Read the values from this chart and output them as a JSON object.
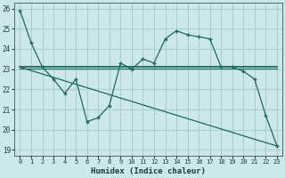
{
  "xlabel": "Humidex (Indice chaleur)",
  "bg_color": "#cce8e8",
  "grid_color": "#aacfcf",
  "line_color": "#1a6b5a",
  "x_values": [
    0,
    1,
    2,
    3,
    4,
    5,
    6,
    7,
    8,
    9,
    10,
    11,
    12,
    13,
    14,
    15,
    16,
    17,
    18,
    19,
    20,
    21,
    22,
    23
  ],
  "y_main": [
    25.9,
    24.3,
    23.1,
    22.5,
    21.8,
    22.5,
    20.4,
    20.6,
    21.2,
    23.3,
    23.0,
    23.5,
    23.3,
    24.5,
    24.9,
    24.7,
    24.6,
    24.5,
    23.1,
    23.1,
    22.9,
    22.5,
    20.7,
    19.2
  ],
  "y_flat1": [
    23.1,
    23.1,
    23.1,
    23.1,
    23.1,
    23.1,
    23.1,
    23.1,
    23.1,
    23.1,
    23.1,
    23.1,
    23.1,
    23.1,
    23.1,
    23.1,
    23.1,
    23.1,
    23.1,
    23.1,
    23.1,
    23.1,
    23.1,
    23.1
  ],
  "y_flat2": [
    23.05,
    23.05,
    23.05,
    23.05,
    23.05,
    23.05,
    23.05,
    23.05,
    23.05,
    23.05,
    23.05,
    23.05,
    23.05,
    23.05,
    23.05,
    23.05,
    23.05,
    23.05,
    23.05,
    23.05,
    23.05,
    23.05,
    23.05,
    23.05
  ],
  "y_diag": [
    23.1,
    22.93,
    22.76,
    22.59,
    22.42,
    22.25,
    22.08,
    21.91,
    21.74,
    21.57,
    21.4,
    21.23,
    21.06,
    20.89,
    20.72,
    20.55,
    20.38,
    20.21,
    20.04,
    19.87,
    19.7,
    19.53,
    19.36,
    19.2
  ],
  "ylim": [
    18.7,
    26.3
  ],
  "xlim": [
    -0.5,
    23.5
  ],
  "yticks": [
    19,
    20,
    21,
    22,
    23,
    24,
    25,
    26
  ],
  "xticks": [
    0,
    1,
    2,
    3,
    4,
    5,
    6,
    7,
    8,
    9,
    10,
    11,
    12,
    13,
    14,
    15,
    16,
    17,
    18,
    19,
    20,
    21,
    22,
    23
  ]
}
